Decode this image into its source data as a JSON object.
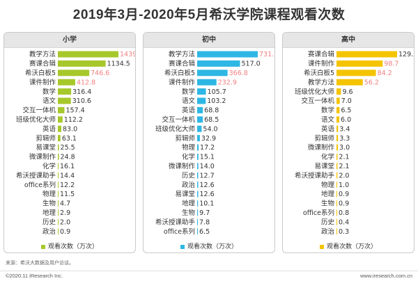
{
  "title": "2019年3月-2020年5月希沃学院课程观看次数",
  "source": "来源：希沃大数据及用户访谈。",
  "footer": {
    "left": "©2020.11  iResearch Inc.",
    "right": "www.iresearch.com.cn"
  },
  "colors": {
    "primary": "#a7c82b",
    "middle": "#2eb7e4",
    "high": "#f5c400",
    "highlight": "#f07f80",
    "label": "#333333"
  },
  "chart_data": [
    {
      "type": "bar",
      "orientation": "horizontal",
      "title": "小学",
      "legend": "观看次数（万次）",
      "series": [
        {
          "name": "观看次数（万次）",
          "values": [
            1439.0,
            1134.5,
            746.6,
            412.8,
            316.4,
            310.6,
            157.4,
            112.2,
            83.0,
            63.1,
            25.5,
            24.8,
            16.1,
            14.4,
            12.2,
            11.5,
            4.7,
            2.9,
            2.0,
            0.9
          ]
        }
      ],
      "categories": [
        "教学方法",
        "赛课合辑",
        "希沃白板5",
        "课件制作",
        "数学",
        "语文",
        "交互一体机",
        "班级优化大师",
        "英语",
        "剪辑师",
        "易课堂",
        "微课制作",
        "化学",
        "希沃授课助手",
        "office系列",
        "物理",
        "生物",
        "地理",
        "历史",
        "政治"
      ],
      "labels": [
        "1439.0",
        "1134.5",
        "746.6",
        "412.8",
        "316.4",
        "310.6",
        "157.4",
        "112.2",
        "83.0",
        "63.1",
        "25.5",
        "24.8",
        "16.1",
        "14.4",
        "12.2",
        "11.5",
        "4.7",
        "2.9",
        "2.0",
        "0.9"
      ],
      "highlighted": [
        "1439.0",
        "746.6",
        "412.8"
      ],
      "xlim": [
        0,
        1439.0
      ]
    },
    {
      "type": "bar",
      "orientation": "horizontal",
      "title": "初中",
      "legend": "观看次数（万次）",
      "series": [
        {
          "name": "观看次数（万次）",
          "values": [
            731.3,
            517.0,
            366.8,
            232.9,
            105.7,
            103.2,
            68.8,
            68.5,
            54.0,
            32.9,
            17.2,
            15.1,
            14.0,
            12.7,
            12.6,
            12.6,
            10.1,
            9.7,
            7.8,
            6.5
          ]
        }
      ],
      "categories": [
        "教学方法",
        "赛课合辑",
        "希沃白板5",
        "课件制作",
        "数学",
        "语文",
        "英语",
        "交互一体机",
        "班级优化大师",
        "剪辑师",
        "物理",
        "化学",
        "微课制作",
        "历史",
        "政治",
        "易课堂",
        "地理",
        "生物",
        "希沃授课助手",
        "office系列"
      ],
      "labels": [
        "731.3",
        "517.0",
        "366.8",
        "232.9",
        "105.7",
        "103.2",
        "68.8",
        "68.5",
        "54.0",
        "32.9",
        "17.2",
        "15.1",
        "14.0",
        "12.7",
        "12.6",
        "12.6",
        "10.1",
        "9.7",
        "7.8",
        "6.5"
      ],
      "highlighted": [
        "731.3",
        "366.8",
        "232.9"
      ],
      "xlim": [
        0,
        731.3
      ]
    },
    {
      "type": "bar",
      "orientation": "horizontal",
      "title": "高中",
      "legend": "观看次数（万次）",
      "series": [
        {
          "name": "观看次数（万次）",
          "values": [
            129.5,
            98.7,
            84.2,
            56.2,
            9.6,
            7.0,
            6.5,
            6.0,
            3.4,
            3.3,
            3.0,
            2.1,
            2.1,
            2.0,
            1.0,
            0.9,
            0.9,
            0.8,
            0.4,
            0.3
          ]
        }
      ],
      "categories": [
        "赛课合辑",
        "课件制作",
        "希沃白板5",
        "教学方法",
        "班级优化大师",
        "交互一体机",
        "数学",
        "语文",
        "英语",
        "剪辑师",
        "微课制作",
        "化学",
        "易课堂",
        "希沃授课助手",
        "物理",
        "地理",
        "生物",
        "office系列",
        "历史",
        "政治"
      ],
      "labels": [
        "129.5",
        "98.7",
        "84.2",
        "56.2",
        "9.6",
        "7.0",
        "6.5",
        "6.0",
        "3.4",
        "3.3",
        "3.0",
        "2.1",
        "2.1",
        "2.0",
        "1.0",
        "0.9",
        "0.9",
        "0.8",
        "0.4",
        "0.3"
      ],
      "highlighted": [
        "98.7",
        "84.2",
        "56.2"
      ],
      "xlim": [
        0,
        129.5
      ]
    }
  ]
}
